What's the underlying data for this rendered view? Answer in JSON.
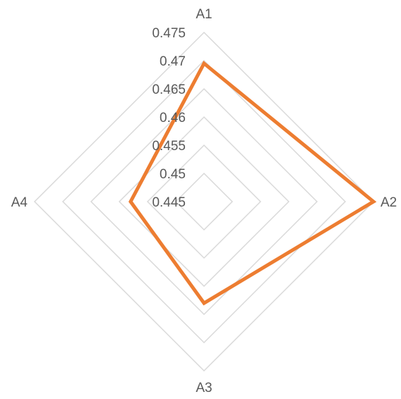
{
  "chart_data": {
    "type": "radar",
    "categories": [
      "A1",
      "A2",
      "A3",
      "A4"
    ],
    "ticks": [
      "0.445",
      "0.45",
      "0.455",
      "0.46",
      "0.465",
      "0.47",
      "0.475"
    ],
    "rlim": [
      0.445,
      0.475
    ],
    "grid": true,
    "legend": "none",
    "series": [
      {
        "values": [
          0.4695,
          0.475,
          0.463,
          0.458
        ],
        "color": "#ED7D31"
      }
    ]
  }
}
